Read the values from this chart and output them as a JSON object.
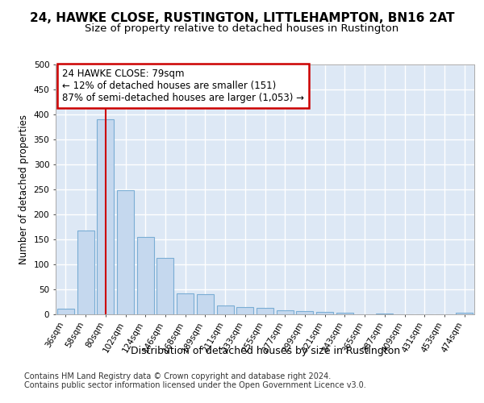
{
  "title1": "24, HAWKE CLOSE, RUSTINGTON, LITTLEHAMPTON, BN16 2AT",
  "title2": "Size of property relative to detached houses in Rustington",
  "xlabel": "Distribution of detached houses by size in Rustington",
  "ylabel": "Number of detached properties",
  "categories": [
    "36sqm",
    "58sqm",
    "80sqm",
    "102sqm",
    "124sqm",
    "146sqm",
    "168sqm",
    "189sqm",
    "211sqm",
    "233sqm",
    "255sqm",
    "277sqm",
    "299sqm",
    "321sqm",
    "343sqm",
    "365sqm",
    "387sqm",
    "409sqm",
    "431sqm",
    "453sqm",
    "474sqm"
  ],
  "values": [
    12,
    167,
    390,
    248,
    155,
    113,
    42,
    40,
    18,
    14,
    13,
    8,
    6,
    5,
    3,
    0,
    2,
    0,
    0,
    0,
    4
  ],
  "bar_color": "#c5d8ee",
  "bar_edge_color": "#7aadd4",
  "vline_x": 2,
  "vline_color": "#cc0000",
  "annotation_text": "24 HAWKE CLOSE: 79sqm\n← 12% of detached houses are smaller (151)\n87% of semi-detached houses are larger (1,053) →",
  "annotation_box_color": "#ffffff",
  "annotation_box_edge": "#cc0000",
  "ylim": [
    0,
    500
  ],
  "yticks": [
    0,
    50,
    100,
    150,
    200,
    250,
    300,
    350,
    400,
    450,
    500
  ],
  "footer": "Contains HM Land Registry data © Crown copyright and database right 2024.\nContains public sector information licensed under the Open Government Licence v3.0.",
  "figure_bg": "#ffffff",
  "plot_bg_color": "#dde8f5",
  "grid_color": "#ffffff",
  "title1_fontsize": 11,
  "title2_fontsize": 9.5,
  "xlabel_fontsize": 9,
  "ylabel_fontsize": 8.5,
  "tick_fontsize": 7.5,
  "annotation_fontsize": 8.5,
  "footer_fontsize": 7
}
